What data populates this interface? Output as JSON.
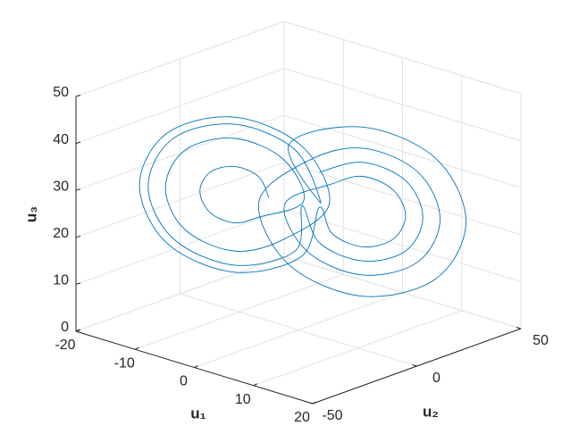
{
  "chart_data": {
    "type": "line3d",
    "xlabel": "u₁",
    "ylabel": "u₂",
    "zlabel": "u₃",
    "xlim": [
      -20,
      20
    ],
    "ylim": [
      -50,
      50
    ],
    "zlim": [
      0,
      50
    ],
    "xticks": [
      -20,
      -10,
      0,
      10,
      20
    ],
    "yticks": [
      -50,
      0,
      50
    ],
    "zticks": [
      0,
      10,
      20,
      30,
      40,
      50
    ],
    "grid": true,
    "series": [
      {
        "color": "#0072bd",
        "x": [
          -4,
          -5.2,
          -8,
          -10.8,
          -12,
          -10.8,
          -8,
          -5.2,
          0,
          -2.3,
          -8,
          -13.7,
          -16,
          -13.7,
          -8,
          -2.3,
          3,
          -0.2,
          -8,
          -15.8,
          -19,
          -15.8,
          -8,
          -0.2,
          3,
          4.5,
          8,
          11.5,
          13,
          11.5,
          8,
          4.5,
          -1,
          1.6,
          8,
          14.4,
          17,
          14.4,
          8,
          1.6,
          -4,
          -0.5,
          8,
          16.5,
          20,
          16.5,
          8,
          -0.5,
          2,
          -0.9,
          -8,
          -15.1,
          -18,
          -15.1,
          -8,
          -0.9,
          1,
          3,
          8,
          13,
          15,
          13,
          8,
          3
        ],
        "y": [
          -2.8,
          -4.3,
          -8,
          -11.7,
          -13.2,
          -11.7,
          -8,
          -4.3,
          2.4,
          -0.6,
          -8,
          -15.4,
          -18.4,
          -15.4,
          -8,
          -0.6,
          6.3,
          2.2,
          -8,
          -18.2,
          -22.3,
          -18.2,
          -8,
          2.2,
          1.5,
          3.4,
          8,
          12.6,
          14.5,
          12.6,
          8,
          3.4,
          -3.7,
          -0.3,
          8,
          16.3,
          19.7,
          16.3,
          8,
          -0.3,
          -7.6,
          -3.1,
          8,
          19.1,
          23.6,
          19.1,
          8,
          -3.1,
          5,
          1.2,
          -8,
          -17.2,
          -21,
          -17.2,
          -8,
          1.2,
          -1.1,
          1.5,
          8,
          14.5,
          17.1,
          14.5,
          8,
          1.5
        ],
        "z": [
          27,
          31.3,
          33,
          31.3,
          27,
          22.7,
          21,
          22.7,
          27,
          35.5,
          39,
          35.5,
          27,
          18.5,
          15,
          18.5,
          27,
          38.7,
          43.5,
          38.7,
          27,
          15.3,
          10.5,
          15.3,
          27,
          21.7,
          19.5,
          21.7,
          27,
          32.3,
          34.5,
          32.3,
          27,
          17.4,
          13.5,
          17.4,
          27,
          36.6,
          40.5,
          36.6,
          27,
          14.2,
          9,
          14.2,
          27,
          39.8,
          45,
          39.8,
          27,
          37.7,
          42,
          37.7,
          27,
          16.4,
          12,
          16.4,
          27,
          19.5,
          16.5,
          19.5,
          27,
          34.5,
          37.5,
          34.5
        ]
      }
    ]
  }
}
